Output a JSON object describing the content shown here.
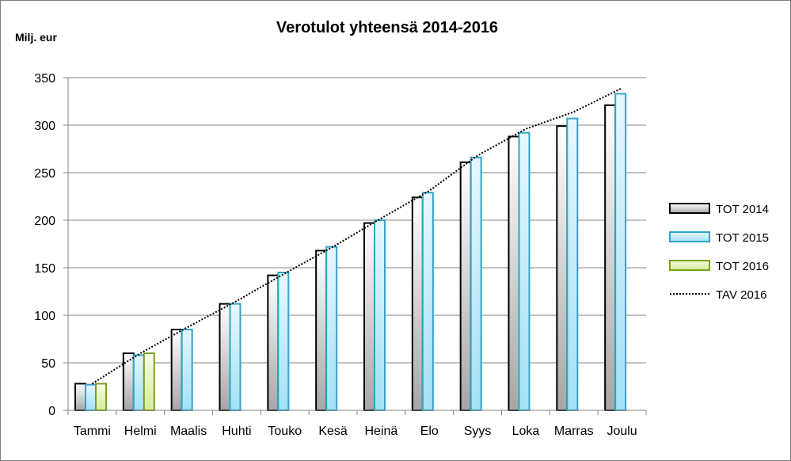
{
  "chart_data": {
    "type": "bar",
    "title": "Verotulot yhteensä 2014-2016",
    "ylabel": "Milj. eur",
    "xlabel": "",
    "ylim": [
      0,
      350
    ],
    "yticks": [
      0,
      50,
      100,
      150,
      200,
      250,
      300,
      350
    ],
    "grid": true,
    "legend_position": "right",
    "categories": [
      "Tammi",
      "Helmi",
      "Maalis",
      "Huhti",
      "Touko",
      "Kesä",
      "Heinä",
      "Elo",
      "Syys",
      "Loka",
      "Marras",
      "Joulu"
    ],
    "series": [
      {
        "name": "TOT 2014",
        "kind": "bar",
        "values": [
          28,
          60,
          85,
          112,
          142,
          168,
          197,
          224,
          261,
          288,
          299,
          321
        ]
      },
      {
        "name": "TOT 2015",
        "kind": "bar",
        "values": [
          27,
          58,
          85,
          112,
          145,
          172,
          200,
          229,
          266,
          292,
          307,
          333
        ]
      },
      {
        "name": "TOT 2016",
        "kind": "bar",
        "values": [
          28,
          60,
          null,
          null,
          null,
          null,
          null,
          null,
          null,
          null,
          null,
          null
        ]
      },
      {
        "name": "TAV 2016",
        "kind": "line",
        "style": "dotted",
        "values": [
          28,
          60,
          88,
          115,
          144,
          172,
          202,
          231,
          268,
          296,
          314,
          339
        ]
      }
    ],
    "colors": {
      "TOT 2014": {
        "stroke": "#000000",
        "fill_top": "#ffffff",
        "fill_bottom": "#a6a6a6"
      },
      "TOT 2015": {
        "stroke": "#31a4c6",
        "fill_top": "#e6f7fd",
        "fill_bottom": "#a3e1f5"
      },
      "TOT 2016": {
        "stroke": "#77a31c",
        "fill_top": "#f6fbe6",
        "fill_bottom": "#d5ee9b"
      },
      "TAV 2016": {
        "stroke": "#000000"
      }
    }
  }
}
